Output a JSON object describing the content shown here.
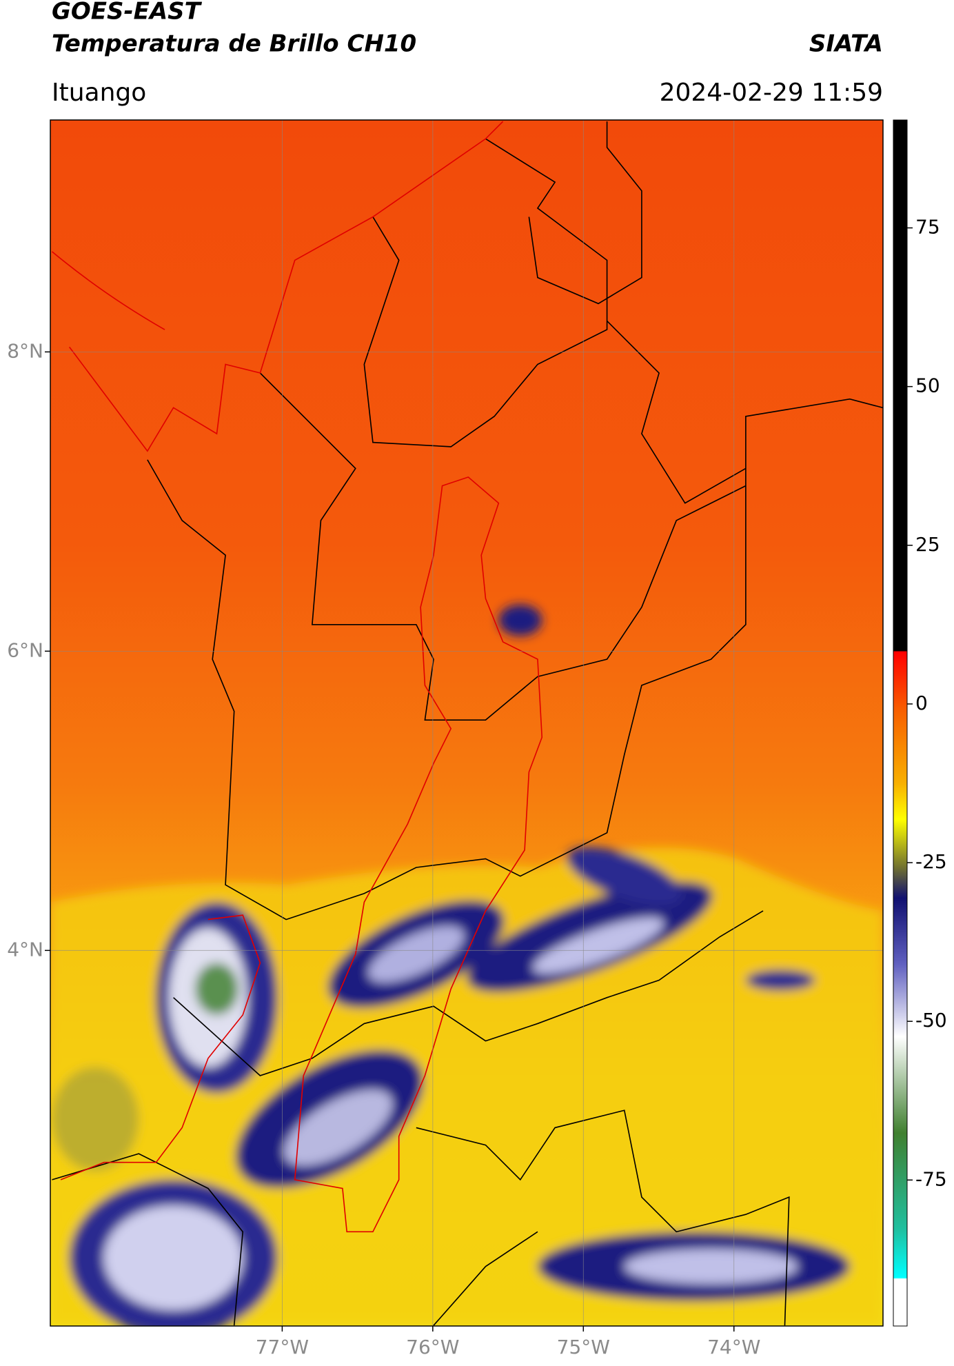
{
  "header": {
    "satellite": "GOES-EAST",
    "product": "Temperatura de Brillo CH10",
    "org": "SIATA",
    "region": "Ituango",
    "datetime": "2024-02-29 11:59"
  },
  "map": {
    "xlim": [
      -78.54,
      -73.01
    ],
    "ylim": [
      1.49,
      9.55
    ],
    "grid": true,
    "xticks": [
      {
        "value": -77,
        "label": "77°W"
      },
      {
        "value": -76,
        "label": "76°W"
      },
      {
        "value": -75,
        "label": "75°W"
      },
      {
        "value": -74,
        "label": "74°W"
      }
    ],
    "yticks": [
      {
        "value": 8,
        "label": "8°N"
      },
      {
        "value": 6,
        "label": "6°N"
      },
      {
        "value": 4,
        "label": "4°N"
      }
    ]
  },
  "colorbar": {
    "lim": [
      -98,
      92
    ],
    "ticks": [
      75,
      50,
      25,
      0,
      -25,
      -50,
      -75
    ]
  }
}
